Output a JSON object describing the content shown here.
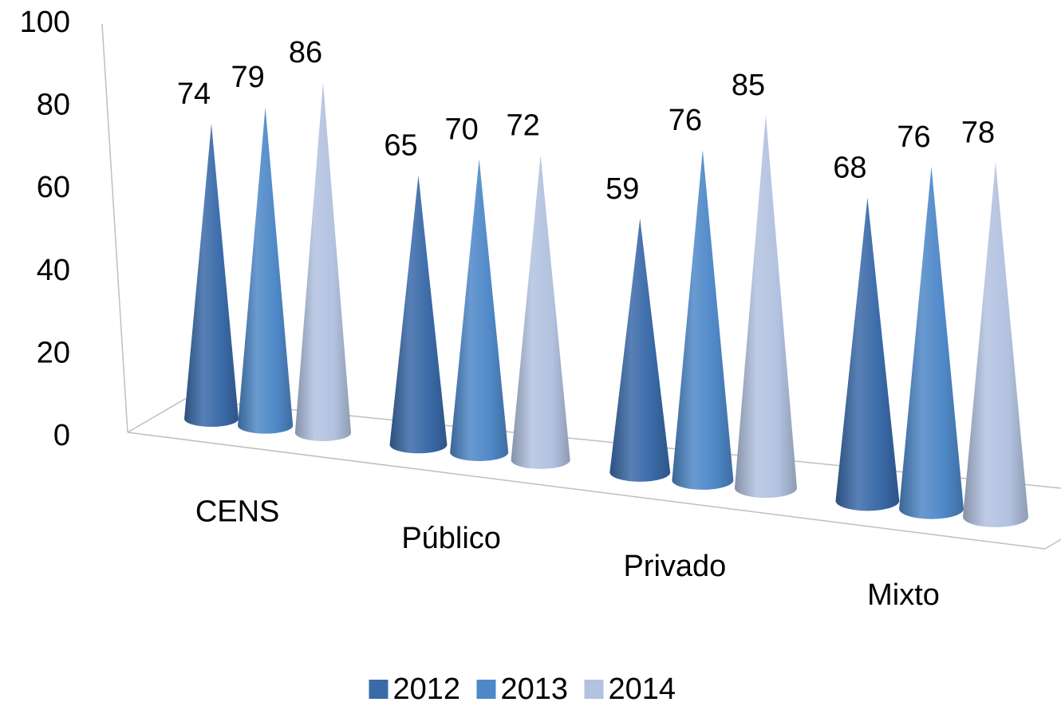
{
  "chart_data": {
    "type": "cone3d",
    "categories": [
      "CENS",
      "Público",
      "Privado",
      "Mixto"
    ],
    "series": [
      {
        "name": "2012",
        "color": "#3a6aa8",
        "values": [
          74,
          65,
          59,
          68
        ]
      },
      {
        "name": "2013",
        "color": "#4f88c8",
        "values": [
          79,
          70,
          76,
          76
        ]
      },
      {
        "name": "2014",
        "color": "#b2c2e0",
        "values": [
          86,
          72,
          85,
          78
        ]
      }
    ],
    "ylim": [
      0,
      100
    ],
    "yticks": [
      0,
      20,
      40,
      60,
      80,
      100
    ],
    "legend": "bottom"
  }
}
